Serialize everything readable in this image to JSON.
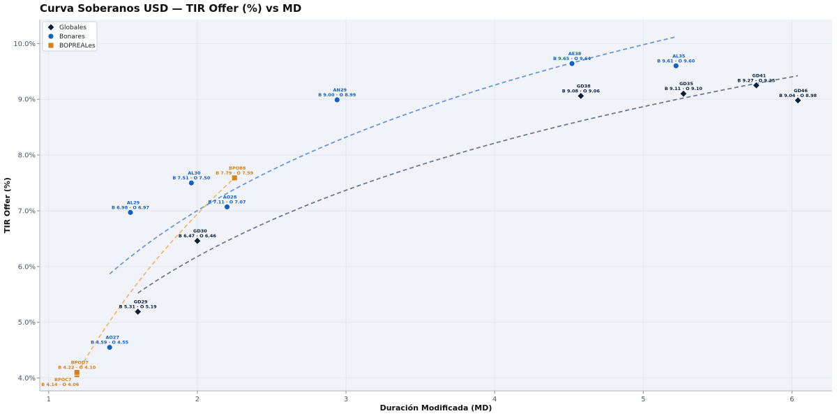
{
  "chart_data": {
    "type": "scatter",
    "title": "Curva Soberanos USD — TIR Offer (%) vs MD",
    "xlabel": "Duración Modificada (MD)",
    "ylabel": "TIR Offer (%)",
    "xlim": [
      0.94,
      6.27
    ],
    "ylim": [
      3.77,
      10.43
    ],
    "xticks": [
      1,
      2,
      3,
      4,
      5,
      6
    ],
    "yticks": [
      4.0,
      5.0,
      6.0,
      7.0,
      8.0,
      9.0,
      10.0
    ],
    "ytick_labels": [
      "4.0%",
      "5.0%",
      "6.0%",
      "7.0%",
      "8.0%",
      "9.0%",
      "10.0%"
    ],
    "grid": true,
    "legend_position": "top-left",
    "series": [
      {
        "name": "Globales",
        "marker": "diamond",
        "color": "#0b1f3a",
        "label_color": "#0b1f3a",
        "points": [
          {
            "ticker": "GD29",
            "x": 1.6,
            "y": 5.19,
            "label": "B 5.31 · O 5.19"
          },
          {
            "ticker": "GD30",
            "x": 2.0,
            "y": 6.46,
            "label": "B 6.47 · O 6.46"
          },
          {
            "ticker": "GD38",
            "x": 4.58,
            "y": 9.06,
            "label": "B 9.08 · O 9.06"
          },
          {
            "ticker": "GD35",
            "x": 5.27,
            "y": 9.1,
            "label": "B 9.11 · O 9.10"
          },
          {
            "ticker": "GD41",
            "x": 5.76,
            "y": 9.25,
            "label": "B 9.27 · O 9.25"
          },
          {
            "ticker": "GD46",
            "x": 6.04,
            "y": 8.98,
            "label": "B 9.04 · O 8.98"
          }
        ]
      },
      {
        "name": "Bonares",
        "marker": "circle",
        "color": "#1560bd",
        "label_color": "#1560bd",
        "points": [
          {
            "ticker": "AO27",
            "x": 1.41,
            "y": 4.55,
            "label": "B 4.59 · O 4.55"
          },
          {
            "ticker": "AL29",
            "x": 1.55,
            "y": 6.97,
            "label": "B 6.98 · O 6.97"
          },
          {
            "ticker": "AL30",
            "x": 1.96,
            "y": 7.5,
            "label": "B 7.51 · O 7.50"
          },
          {
            "ticker": "AO28",
            "x": 2.2,
            "y": 7.07,
            "label": "B 7.11 · O 7.07"
          },
          {
            "ticker": "AN29",
            "x": 2.94,
            "y": 8.99,
            "label": "B 9.00 · O 8.99"
          },
          {
            "ticker": "AE38",
            "x": 4.52,
            "y": 9.64,
            "label": "B 9.65 · O 9.64"
          },
          {
            "ticker": "AL35",
            "x": 5.22,
            "y": 9.6,
            "label": "B 9.61 · O 9.60"
          }
        ]
      },
      {
        "name": "BOPREALes",
        "marker": "square",
        "color": "#d4821e",
        "label_color": "#d4821e",
        "points": [
          {
            "ticker": "BPOC7",
            "x": 1.19,
            "y": 4.06,
            "label": "B 4.14 · O 4.06"
          },
          {
            "ticker": "BPOD7",
            "x": 1.19,
            "y": 4.1,
            "label": "B 4.22 · O 4.10"
          },
          {
            "ticker": "BPO88",
            "x": 2.25,
            "y": 7.59,
            "label": "B 7.79 · O 7.59"
          }
        ]
      }
    ],
    "fit_curves": [
      {
        "series": "Globales",
        "color": "#5a6f86",
        "x_range": [
          1.6,
          6.04
        ]
      },
      {
        "series": "Bonares",
        "color": "#5a8fd0",
        "x_range": [
          1.41,
          5.22
        ]
      },
      {
        "series": "BOPREALes",
        "color": "#f0b070",
        "x_range": [
          1.19,
          2.25
        ]
      }
    ]
  }
}
